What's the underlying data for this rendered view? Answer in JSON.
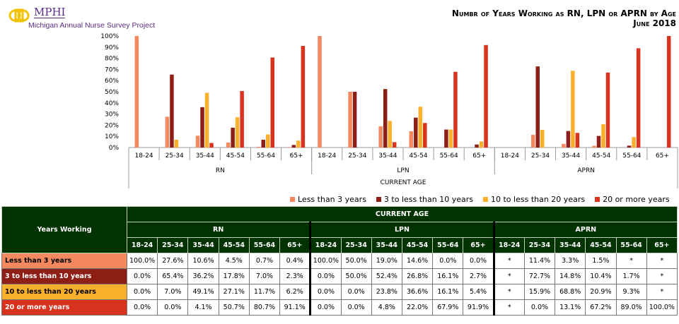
{
  "header": {
    "logo_text": "MPHI",
    "logo_subtitle": "Michigan Annual Nurse Survey Project",
    "title": "Numbr of Years Working as RN, LPN or APRN by Age",
    "subtitle": "June 2018"
  },
  "colors": {
    "Less than 3 years": "#f4895f",
    "3 to less than 10 years": "#8e1f17",
    "10 to less than 20 years": "#fbb02b",
    "20 or more years": "#d9321f",
    "table_header": "#003300"
  },
  "chart_data": {
    "type": "bar",
    "xlabel": "CURRENT AGE",
    "ylim": [
      0,
      100
    ],
    "yticks": [
      "0%",
      "10%",
      "20%",
      "30%",
      "40%",
      "50%",
      "60%",
      "70%",
      "80%",
      "90%",
      "100%"
    ],
    "groups": [
      "RN",
      "LPN",
      "APRN"
    ],
    "categories": [
      "18-24",
      "25-34",
      "35-44",
      "45-54",
      "55-64",
      "65+"
    ],
    "legend_position": "bottom",
    "series": [
      {
        "name": "Less than 3 years",
        "values": {
          "RN": [
            100.0,
            27.6,
            10.6,
            4.5,
            0.7,
            0.4
          ],
          "LPN": [
            100.0,
            50.0,
            19.0,
            14.6,
            0.0,
            0.0
          ],
          "APRN": [
            null,
            11.4,
            3.3,
            1.5,
            null,
            null
          ]
        }
      },
      {
        "name": "3 to less than 10 years",
        "values": {
          "RN": [
            0.0,
            65.4,
            36.2,
            17.8,
            7.0,
            2.3
          ],
          "LPN": [
            0.0,
            50.0,
            52.4,
            26.8,
            16.1,
            2.7
          ],
          "APRN": [
            null,
            72.7,
            14.8,
            10.4,
            1.7,
            null
          ]
        }
      },
      {
        "name": "10 to less than 20 years",
        "values": {
          "RN": [
            0.0,
            7.0,
            49.1,
            27.1,
            11.7,
            6.2
          ],
          "LPN": [
            0.0,
            0.0,
            23.8,
            36.6,
            16.1,
            5.4
          ],
          "APRN": [
            null,
            15.9,
            68.8,
            20.9,
            9.3,
            null
          ]
        }
      },
      {
        "name": "20 or more years",
        "values": {
          "RN": [
            0.0,
            0.0,
            4.1,
            50.7,
            80.7,
            91.1
          ],
          "LPN": [
            0.0,
            0.0,
            4.8,
            22.0,
            67.9,
            91.9
          ],
          "APRN": [
            null,
            0.0,
            13.1,
            67.2,
            89.0,
            100.0
          ]
        }
      }
    ]
  },
  "table": {
    "row_header": "Years Working",
    "top_header": "CURRENT AGE",
    "groups": [
      "RN",
      "LPN",
      "APRN"
    ],
    "ages": [
      "18-24",
      "25-34",
      "35-44",
      "45-54",
      "55-64",
      "65+"
    ],
    "rows": [
      {
        "label": "Less than 3 years",
        "cells": [
          "100.0%",
          "27.6%",
          "10.6%",
          "4.5%",
          "0.7%",
          "0.4%",
          "100.0%",
          "50.0%",
          "19.0%",
          "14.6%",
          "0.0%",
          "0.0%",
          "*",
          "11.4%",
          "3.3%",
          "1.5%",
          "*",
          "*"
        ]
      },
      {
        "label": "3 to less than 10 years",
        "cells": [
          "0.0%",
          "65.4%",
          "36.2%",
          "17.8%",
          "7.0%",
          "2.3%",
          "0.0%",
          "50.0%",
          "52.4%",
          "26.8%",
          "16.1%",
          "2.7%",
          "*",
          "72.7%",
          "14.8%",
          "10.4%",
          "1.7%",
          "*"
        ]
      },
      {
        "label": "10 to less than 20 years",
        "cells": [
          "0.0%",
          "7.0%",
          "49.1%",
          "27.1%",
          "11.7%",
          "6.2%",
          "0.0%",
          "0.0%",
          "23.8%",
          "36.6%",
          "16.1%",
          "5.4%",
          "*",
          "15.9%",
          "68.8%",
          "20.9%",
          "9.3%",
          "*"
        ]
      },
      {
        "label": "20 or more years",
        "cells": [
          "0.0%",
          "0.0%",
          "4.1%",
          "50.7%",
          "80.7%",
          "91.1%",
          "0.0%",
          "0.0%",
          "4.8%",
          "22.0%",
          "67.9%",
          "91.9%",
          "*",
          "0.0%",
          "13.1%",
          "67.2%",
          "89.0%",
          "100.0%"
        ]
      }
    ]
  }
}
